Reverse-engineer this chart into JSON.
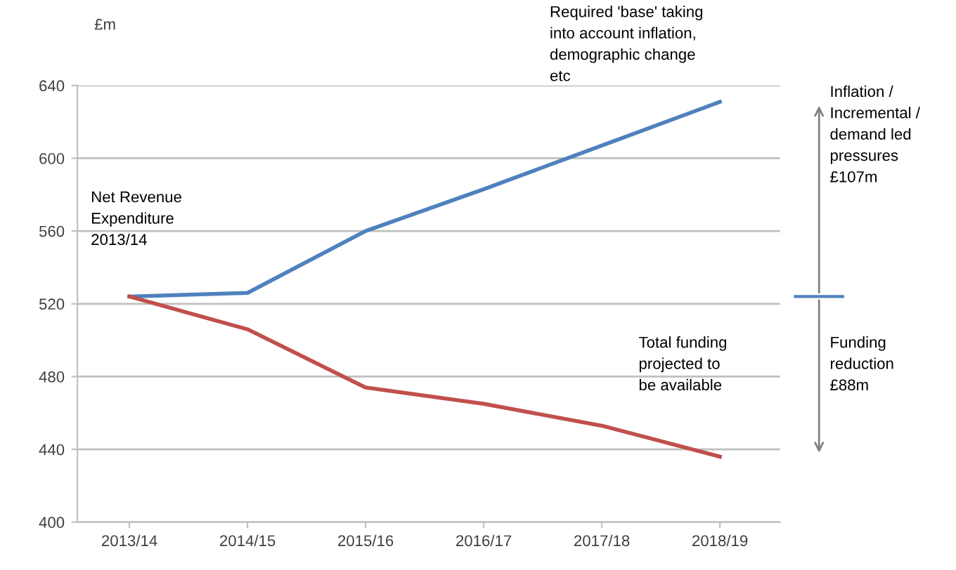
{
  "chart_data": {
    "type": "line",
    "ylabel": "£m",
    "categories": [
      "2013/14",
      "2014/15",
      "2015/16",
      "2016/17",
      "2017/18",
      "2018/19"
    ],
    "series": [
      {
        "color": "#4f81bd",
        "values": [
          524,
          526,
          560,
          583,
          607,
          631
        ]
      },
      {
        "color": "#c0504d",
        "values": [
          524,
          506,
          474,
          465,
          453,
          436
        ]
      }
    ],
    "ylim": [
      400,
      640
    ],
    "yticks": [
      400,
      440,
      480,
      520,
      560,
      600,
      640
    ],
    "grid": "y",
    "legend": false,
    "marker": "none",
    "line_style": "solid",
    "annotations": [
      "Required 'base' taking\ninto account inflation,\ndemographic change\netc",
      "Net Revenue\nExpenditure\n2013/14",
      "Total funding\nprojected to\nbe available",
      "Inflation /\nIncremental /\ndemand led\npressures\n£107m",
      "Funding\nreduction\n£88m"
    ]
  }
}
